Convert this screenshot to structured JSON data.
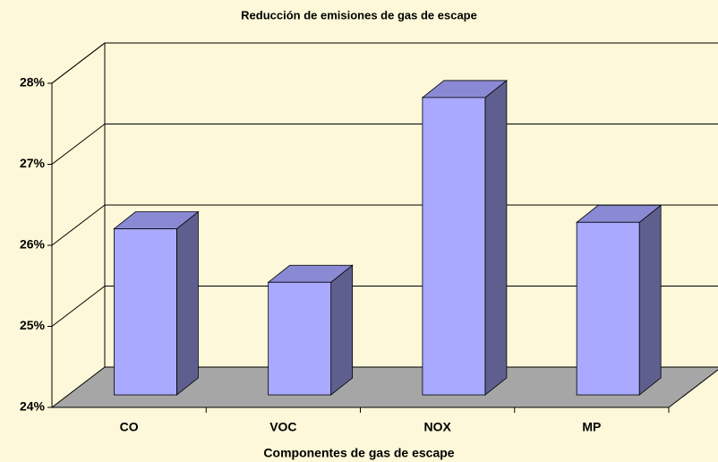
{
  "chart_data": {
    "type": "bar3d",
    "title": "Reducción de emisiones de gas de escape",
    "x_label": "Componentes de gas de escape",
    "categories": [
      "CO",
      "VOC",
      "NOX",
      "MP"
    ],
    "values": [
      26.05,
      25.39,
      27.67,
      26.13
    ],
    "color": "#a9a9ff",
    "ylim": [
      24,
      28
    ],
    "yticks": [
      {
        "value": 24,
        "label": "24%"
      },
      {
        "value": 25,
        "label": "25%"
      },
      {
        "value": 26,
        "label": "26%"
      },
      {
        "value": 27,
        "label": "27%"
      },
      {
        "value": 28,
        "label": "28%"
      }
    ],
    "grid": true
  }
}
